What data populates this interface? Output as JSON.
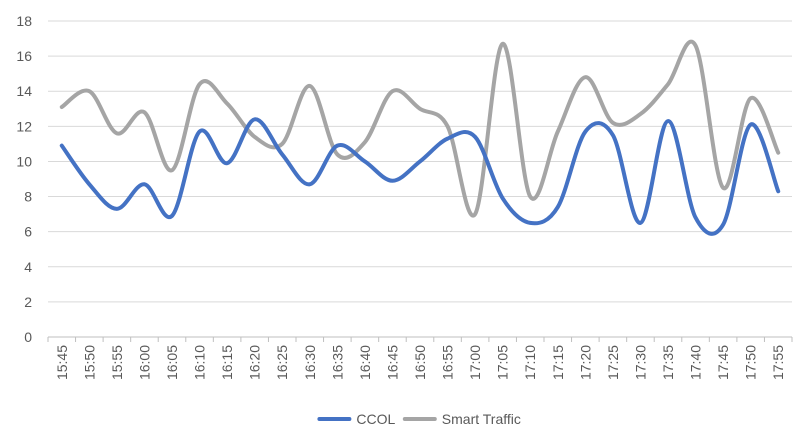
{
  "chart_data": {
    "type": "line",
    "smooth": true,
    "title": "",
    "xlabel": "",
    "ylabel": "",
    "ylim": [
      0,
      18
    ],
    "yticks": [
      0,
      2,
      4,
      6,
      8,
      10,
      12,
      14,
      16,
      18
    ],
    "grid": "horizontal",
    "legend": "bottom-center",
    "categories": [
      "15:45",
      "15:50",
      "15:55",
      "16:00",
      "16:05",
      "16:10",
      "16:15",
      "16:20",
      "16:25",
      "16:30",
      "16:35",
      "16:40",
      "16:45",
      "16:50",
      "16:55",
      "17:00",
      "17:05",
      "17:10",
      "17:15",
      "17:20",
      "17:25",
      "17:30",
      "17:35",
      "17:40",
      "17:45",
      "17:50",
      "17:55"
    ],
    "series": [
      {
        "name": "CCOL",
        "color": "#4472C4",
        "values": [
          10.9,
          8.7,
          7.3,
          8.7,
          6.9,
          11.7,
          9.9,
          12.4,
          10.4,
          8.7,
          10.9,
          10.0,
          8.9,
          10.0,
          11.3,
          11.4,
          7.9,
          6.5,
          7.4,
          11.7,
          11.5,
          6.5,
          12.3,
          6.8,
          6.4,
          12.1,
          8.3
        ]
      },
      {
        "name": "Smart Traffic",
        "color": "#A5A5A5",
        "values": [
          13.1,
          14.0,
          11.6,
          12.8,
          9.5,
          14.4,
          13.3,
          11.4,
          11.0,
          14.3,
          10.4,
          11.1,
          14.0,
          13.0,
          12.0,
          7.0,
          16.7,
          8.0,
          11.7,
          14.8,
          12.2,
          12.7,
          14.4,
          16.6,
          8.5,
          13.6,
          10.5
        ]
      }
    ]
  }
}
